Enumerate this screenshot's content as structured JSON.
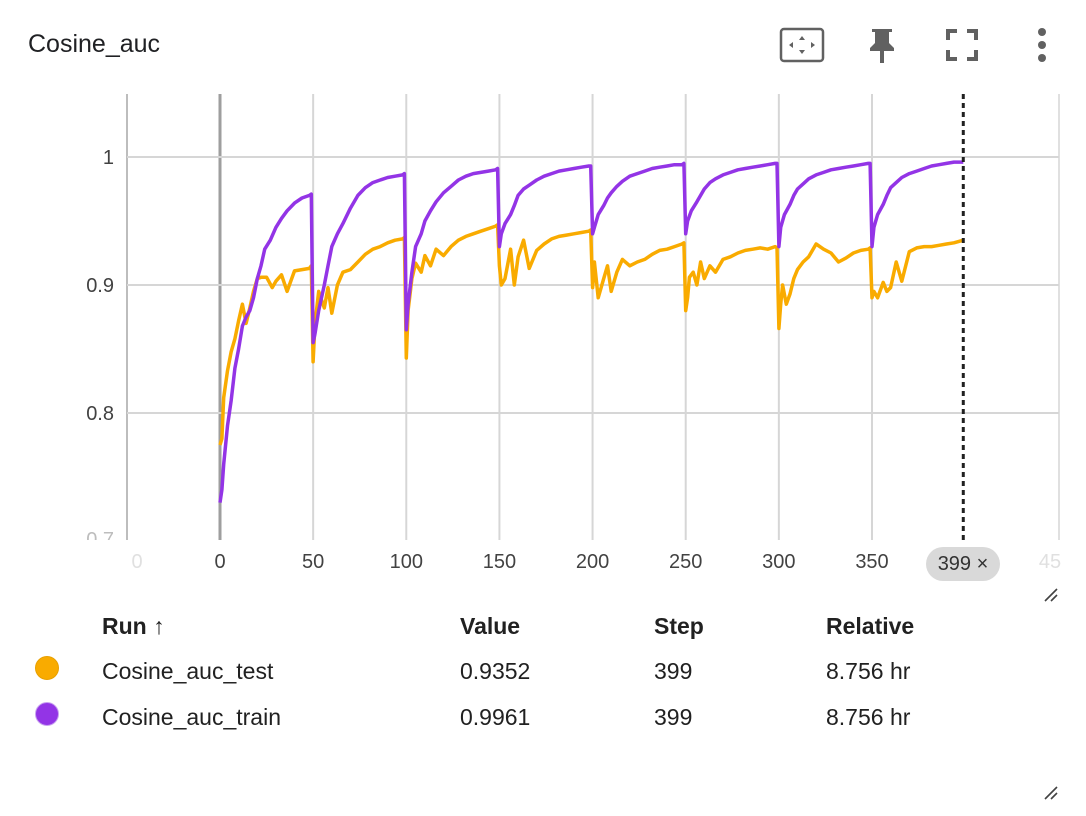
{
  "card": {
    "title": "Cosine_auc",
    "toolbar": [
      {
        "name": "fit-domain-icon"
      },
      {
        "name": "pin-icon"
      },
      {
        "name": "fullscreen-icon"
      },
      {
        "name": "more-vert-icon"
      }
    ]
  },
  "chart_data": {
    "type": "line",
    "title": "Cosine_auc",
    "xlabel": "",
    "ylabel": "",
    "xlim": [
      -45,
      450
    ],
    "ylim": [
      0.7,
      1.05
    ],
    "x_ticks": [
      "0",
      "50",
      "100",
      "150",
      "200",
      "250",
      "300",
      "350"
    ],
    "x_ticks_clipped": [
      "0",
      "45"
    ],
    "y_ticks": [
      "0.8",
      "0.9",
      "1",
      "0.7"
    ],
    "grid": true,
    "hover_step": 399,
    "series": [
      {
        "name": "Cosine_auc_test",
        "color": "#f9ab00",
        "x": [
          0,
          1,
          2,
          4,
          6,
          8,
          10,
          12,
          14,
          16,
          18,
          20,
          22,
          25,
          28,
          30,
          33,
          36,
          40,
          44,
          48,
          49,
          50,
          51,
          53,
          56,
          58,
          60,
          63,
          66,
          70,
          74,
          78,
          82,
          86,
          90,
          94,
          98,
          99,
          100,
          101,
          103,
          105,
          108,
          110,
          113,
          116,
          120,
          124,
          128,
          132,
          136,
          140,
          144,
          148,
          149,
          150,
          151,
          153,
          156,
          158,
          160,
          163,
          166,
          170,
          174,
          178,
          182,
          186,
          190,
          194,
          198,
          199,
          200,
          201,
          203,
          206,
          208,
          210,
          213,
          216,
          220,
          224,
          228,
          232,
          236,
          240,
          244,
          248,
          249,
          250,
          251,
          252,
          254,
          256,
          258,
          260,
          263,
          266,
          270,
          274,
          278,
          282,
          286,
          290,
          294,
          298,
          299,
          300,
          301,
          302,
          304,
          306,
          308,
          310,
          313,
          316,
          320,
          324,
          328,
          332,
          336,
          340,
          344,
          348,
          349,
          350,
          351,
          353,
          356,
          358,
          360,
          363,
          366,
          370,
          374,
          378,
          382,
          386,
          390,
          394,
          399
        ],
        "y": [
          0.775,
          0.78,
          0.812,
          0.833,
          0.848,
          0.858,
          0.872,
          0.885,
          0.87,
          0.882,
          0.895,
          0.905,
          0.906,
          0.906,
          0.898,
          0.903,
          0.908,
          0.895,
          0.911,
          0.912,
          0.913,
          0.915,
          0.84,
          0.87,
          0.895,
          0.882,
          0.898,
          0.878,
          0.9,
          0.91,
          0.912,
          0.918,
          0.924,
          0.928,
          0.93,
          0.933,
          0.935,
          0.936,
          0.937,
          0.843,
          0.88,
          0.905,
          0.917,
          0.91,
          0.923,
          0.915,
          0.928,
          0.923,
          0.93,
          0.935,
          0.938,
          0.94,
          0.942,
          0.944,
          0.946,
          0.947,
          0.915,
          0.9,
          0.905,
          0.928,
          0.9,
          0.922,
          0.935,
          0.913,
          0.927,
          0.932,
          0.936,
          0.938,
          0.939,
          0.94,
          0.941,
          0.942,
          0.943,
          0.898,
          0.918,
          0.89,
          0.905,
          0.915,
          0.895,
          0.91,
          0.92,
          0.915,
          0.918,
          0.92,
          0.924,
          0.927,
          0.928,
          0.93,
          0.932,
          0.933,
          0.88,
          0.89,
          0.906,
          0.91,
          0.9,
          0.918,
          0.905,
          0.915,
          0.91,
          0.92,
          0.922,
          0.925,
          0.927,
          0.928,
          0.929,
          0.928,
          0.93,
          0.929,
          0.866,
          0.885,
          0.9,
          0.885,
          0.893,
          0.905,
          0.912,
          0.918,
          0.922,
          0.932,
          0.928,
          0.925,
          0.918,
          0.921,
          0.925,
          0.927,
          0.928,
          0.929,
          0.89,
          0.895,
          0.89,
          0.902,
          0.895,
          0.898,
          0.918,
          0.903,
          0.926,
          0.929,
          0.93,
          0.93,
          0.931,
          0.932,
          0.933,
          0.935
        ]
      },
      {
        "name": "Cosine_auc_train",
        "color": "#9334e6",
        "x": [
          0,
          1,
          2,
          4,
          6,
          8,
          10,
          12,
          14,
          16,
          18,
          20,
          22,
          24,
          27,
          30,
          33,
          36,
          40,
          44,
          48,
          49,
          50,
          51,
          53,
          56,
          58,
          60,
          63,
          66,
          70,
          74,
          78,
          82,
          86,
          90,
          94,
          98,
          99,
          100,
          101,
          103,
          105,
          108,
          110,
          113,
          116,
          120,
          124,
          128,
          132,
          136,
          140,
          144,
          148,
          149,
          150,
          151,
          153,
          156,
          158,
          160,
          163,
          166,
          170,
          174,
          178,
          182,
          186,
          190,
          194,
          198,
          199,
          200,
          201,
          203,
          206,
          208,
          210,
          213,
          216,
          220,
          224,
          228,
          232,
          236,
          240,
          244,
          248,
          249,
          250,
          251,
          253,
          256,
          258,
          260,
          263,
          266,
          270,
          274,
          278,
          282,
          286,
          290,
          294,
          298,
          299,
          300,
          301,
          303,
          306,
          308,
          310,
          313,
          316,
          320,
          324,
          328,
          332,
          336,
          340,
          344,
          348,
          349,
          350,
          351,
          353,
          356,
          358,
          360,
          363,
          366,
          370,
          374,
          378,
          382,
          386,
          390,
          394,
          399
        ],
        "y": [
          0.73,
          0.74,
          0.76,
          0.79,
          0.81,
          0.835,
          0.85,
          0.868,
          0.875,
          0.88,
          0.89,
          0.905,
          0.915,
          0.928,
          0.935,
          0.945,
          0.952,
          0.958,
          0.964,
          0.968,
          0.97,
          0.971,
          0.855,
          0.862,
          0.88,
          0.9,
          0.915,
          0.93,
          0.94,
          0.948,
          0.96,
          0.97,
          0.976,
          0.98,
          0.982,
          0.984,
          0.985,
          0.986,
          0.987,
          0.865,
          0.885,
          0.91,
          0.93,
          0.94,
          0.95,
          0.958,
          0.965,
          0.972,
          0.977,
          0.982,
          0.985,
          0.987,
          0.988,
          0.989,
          0.99,
          0.991,
          0.93,
          0.94,
          0.948,
          0.955,
          0.962,
          0.97,
          0.975,
          0.978,
          0.982,
          0.985,
          0.987,
          0.989,
          0.99,
          0.991,
          0.992,
          0.993,
          0.993,
          0.94,
          0.945,
          0.955,
          0.962,
          0.968,
          0.972,
          0.977,
          0.981,
          0.985,
          0.987,
          0.989,
          0.991,
          0.992,
          0.993,
          0.994,
          0.994,
          0.995,
          0.94,
          0.95,
          0.958,
          0.965,
          0.97,
          0.975,
          0.98,
          0.983,
          0.986,
          0.988,
          0.99,
          0.991,
          0.992,
          0.993,
          0.994,
          0.995,
          0.995,
          0.93,
          0.945,
          0.955,
          0.963,
          0.97,
          0.975,
          0.979,
          0.983,
          0.986,
          0.988,
          0.99,
          0.991,
          0.992,
          0.993,
          0.994,
          0.995,
          0.995,
          0.93,
          0.945,
          0.955,
          0.963,
          0.97,
          0.976,
          0.98,
          0.984,
          0.987,
          0.989,
          0.991,
          0.993,
          0.994,
          0.995,
          0.996,
          0.996
        ]
      }
    ]
  },
  "runs_table": {
    "headers": {
      "run": "Run ↑",
      "value": "Value",
      "step": "Step",
      "relative": "Relative"
    },
    "rows": [
      {
        "name": "Cosine_auc_test",
        "value": "0.9352",
        "step": "399",
        "relative": "8.756 hr",
        "color": "#f9ab00"
      },
      {
        "name": "Cosine_auc_train",
        "value": "0.9961",
        "step": "399",
        "relative": "8.756 hr",
        "color": "#9334e6"
      }
    ]
  },
  "step_chip": {
    "label": "399 ×"
  }
}
